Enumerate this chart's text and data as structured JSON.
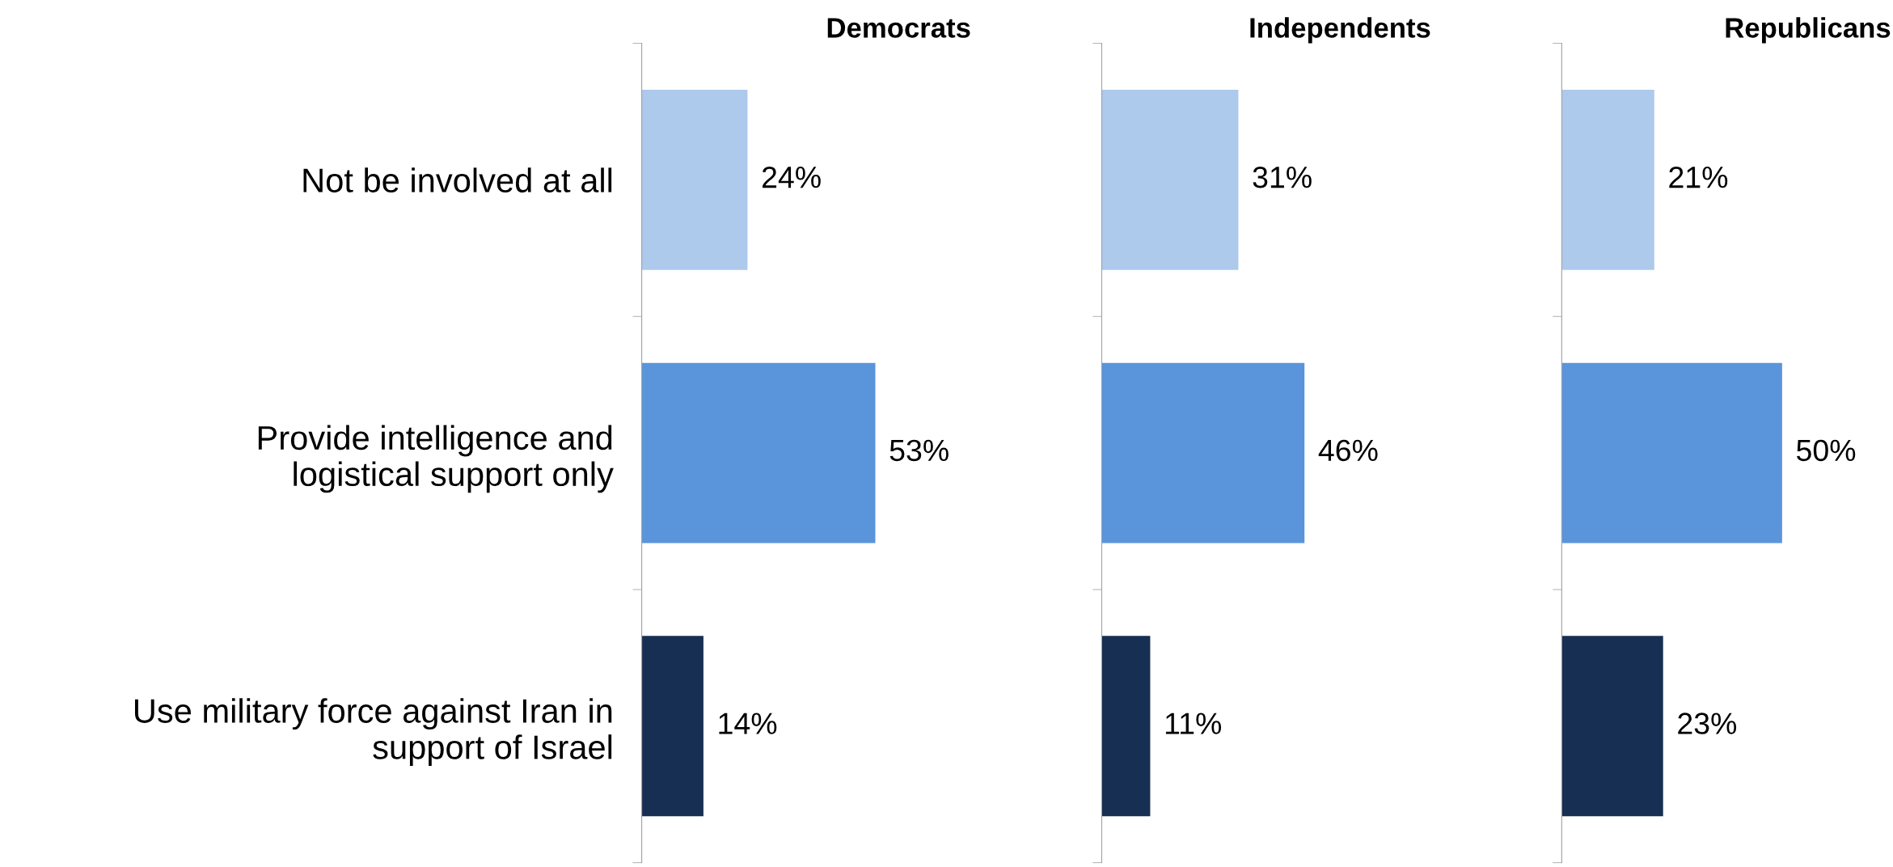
{
  "chart_data": [
    {
      "type": "bar",
      "orientation": "horizontal",
      "title": "Democrats",
      "categories": [
        "Not be involved at all",
        "Provide intelligence and logistical support only",
        "Use military force against Iran in support of Israel"
      ],
      "values": [
        24,
        53,
        14
      ],
      "value_labels": [
        "24%",
        "53%",
        "14%"
      ],
      "colors": [
        "#adc9ec",
        "#5a94db",
        "#162f52"
      ],
      "tick_labels": "y",
      "grid": false,
      "legend": false
    },
    {
      "type": "bar",
      "orientation": "horizontal",
      "title": "Independents",
      "categories": [
        null,
        null,
        null
      ],
      "values": [
        31,
        46,
        11
      ],
      "value_labels": [
        "31%",
        "46%",
        "11%"
      ],
      "colors": [
        "#adc9ec",
        "#5a94db",
        "#162f52"
      ],
      "tick_labels": false,
      "grid": false,
      "legend": false
    },
    {
      "type": "bar",
      "orientation": "horizontal",
      "title": "Republicans",
      "categories": [
        null,
        null,
        null
      ],
      "values": [
        21,
        50,
        23
      ],
      "value_labels": [
        "21%",
        "50%",
        "23%"
      ],
      "colors": [
        "#adc9ec",
        "#5a94db",
        "#162f52"
      ],
      "tick_labels": false,
      "grid": false,
      "legend": false
    }
  ]
}
